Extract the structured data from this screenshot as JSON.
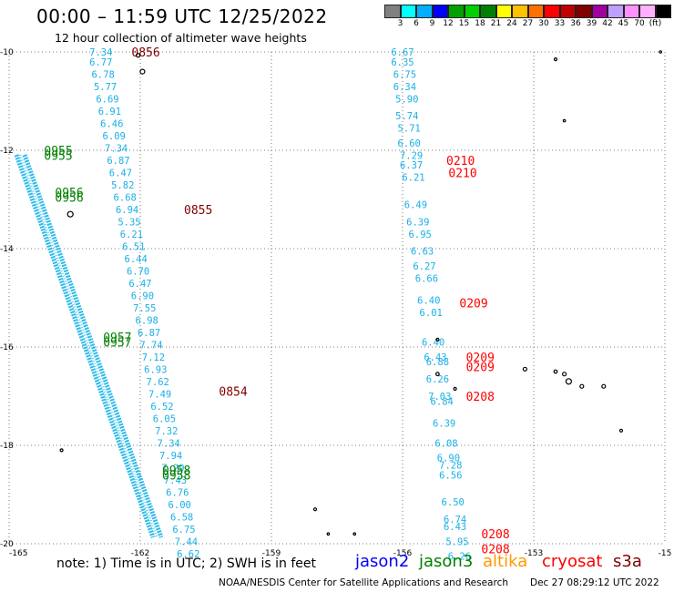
{
  "title": "00:00 – 11:59 UTC 12/25/2022",
  "subtitle": "12 hour collection of altimeter wave heights",
  "color_scale": {
    "unit": "(ft)",
    "colors": [
      "#808080",
      "#00ffff",
      "#00b0ff",
      "#0000ff",
      "#00a000",
      "#00d000",
      "#008000",
      "#ffff00",
      "#ffc000",
      "#ff7000",
      "#ff0000",
      "#c00000",
      "#800000",
      "#a000a0",
      "#c0a0ff",
      "#ff90ff",
      "#ffb0ff",
      "#000000"
    ],
    "labels": [
      "3",
      "6",
      "9",
      "12",
      "15",
      "18",
      "21",
      "24",
      "27",
      "30",
      "33",
      "36",
      "39",
      "42",
      "45",
      "70"
    ]
  },
  "note": "note: 1) Time is in UTC; 2) SWH is in feet",
  "legend": [
    {
      "name": "jason2",
      "color": "#0000ff"
    },
    {
      "name": "jason3",
      "color": "#008000"
    },
    {
      "name": "altika",
      "color": "#ff9900"
    },
    {
      "name": "cryosat",
      "color": "#ff0000"
    },
    {
      "name": "s3a",
      "color": "#800000"
    }
  ],
  "credit": "NOAA/NESDIS Center for Satellite Applications and Research",
  "timestamp": "Dec 27 08:29:12 UTC 2022",
  "chart_data": {
    "type": "scatter",
    "title": "00:00 – 11:59 UTC 12/25/2022",
    "xlim": [
      -165,
      -150
    ],
    "ylim": [
      -20,
      -10
    ],
    "x_ticks": [
      "-165",
      "-162",
      "-159",
      "-156",
      "-153",
      "-15"
    ],
    "y_ticks": [
      "-10",
      "-12",
      "-14",
      "-16",
      "-18",
      "-20"
    ],
    "grid": true,
    "tracks": [
      {
        "name": "s3a",
        "time_color": "#800000",
        "points": [
          {
            "x": -162.9,
            "y": -10.0,
            "v": "7.34"
          },
          {
            "x": -162.9,
            "y": -10.2,
            "v": "6.77"
          },
          {
            "x": -162.85,
            "y": -10.45,
            "v": "6.78"
          },
          {
            "x": -162.8,
            "y": -10.7,
            "v": "5.77"
          },
          {
            "x": -162.75,
            "y": -10.95,
            "v": "6.69"
          },
          {
            "x": -162.7,
            "y": -11.2,
            "v": "6.91"
          },
          {
            "x": -162.65,
            "y": -11.45,
            "v": "6.46"
          },
          {
            "x": -162.6,
            "y": -11.7,
            "v": "6.09"
          },
          {
            "x": -162.55,
            "y": -11.95,
            "v": "7.34"
          },
          {
            "x": -162.5,
            "y": -12.2,
            "v": "6.87"
          },
          {
            "x": -162.45,
            "y": -12.45,
            "v": "6.47"
          },
          {
            "x": -162.4,
            "y": -12.7,
            "v": "5.82"
          },
          {
            "x": -162.35,
            "y": -12.95,
            "v": "6.68"
          },
          {
            "x": -162.3,
            "y": -13.2,
            "v": "6.94"
          },
          {
            "x": -162.25,
            "y": -13.45,
            "v": "5.35"
          },
          {
            "x": -162.2,
            "y": -13.7,
            "v": "6.21"
          },
          {
            "x": -162.15,
            "y": -13.95,
            "v": "6.51"
          },
          {
            "x": -162.1,
            "y": -14.2,
            "v": "6.44"
          },
          {
            "x": -162.05,
            "y": -14.45,
            "v": "6.70"
          },
          {
            "x": -162.0,
            "y": -14.7,
            "v": "6.47"
          },
          {
            "x": -161.95,
            "y": -14.95,
            "v": "6.90"
          },
          {
            "x": -161.9,
            "y": -15.2,
            "v": "7.55"
          },
          {
            "x": -161.85,
            "y": -15.45,
            "v": "6.98"
          },
          {
            "x": -161.8,
            "y": -15.7,
            "v": "6.87"
          },
          {
            "x": -161.75,
            "y": -15.95,
            "v": "7.74"
          },
          {
            "x": -161.7,
            "y": -16.2,
            "v": "7.12"
          },
          {
            "x": -161.65,
            "y": -16.45,
            "v": "6.93"
          },
          {
            "x": -161.6,
            "y": -16.7,
            "v": "7.62"
          },
          {
            "x": -161.55,
            "y": -16.95,
            "v": "7.49"
          },
          {
            "x": -161.5,
            "y": -17.2,
            "v": "6.52"
          },
          {
            "x": -161.45,
            "y": -17.45,
            "v": "6.05"
          },
          {
            "x": -161.4,
            "y": -17.7,
            "v": "7.32"
          },
          {
            "x": -161.35,
            "y": -17.95,
            "v": "7.34"
          },
          {
            "x": -161.3,
            "y": -18.2,
            "v": "7.94"
          },
          {
            "x": -161.25,
            "y": -18.45,
            "v": "7.29"
          },
          {
            "x": -161.2,
            "y": -18.7,
            "v": "7.43"
          },
          {
            "x": -161.15,
            "y": -18.95,
            "v": "6.76"
          },
          {
            "x": -161.1,
            "y": -19.2,
            "v": "6.00"
          },
          {
            "x": -161.05,
            "y": -19.45,
            "v": "6.58"
          },
          {
            "x": -161.0,
            "y": -19.7,
            "v": "6.75"
          },
          {
            "x": -160.95,
            "y": -19.95,
            "v": "7.44"
          },
          {
            "x": -160.9,
            "y": -20.2,
            "v": "6.62"
          }
        ]
      },
      {
        "name": "cryosat",
        "time_color": "#ff0000",
        "points": [
          {
            "x": -156.0,
            "y": -10.0,
            "v": "6.67"
          },
          {
            "x": -156.0,
            "y": -10.2,
            "v": "6.35"
          },
          {
            "x": -155.95,
            "y": -10.45,
            "v": "6.75"
          },
          {
            "x": -155.95,
            "y": -10.7,
            "v": "6.34"
          },
          {
            "x": -155.9,
            "y": -10.95,
            "v": "5.90"
          },
          {
            "x": -155.9,
            "y": -11.3,
            "v": "5.74"
          },
          {
            "x": -155.85,
            "y": -11.55,
            "v": "5.71"
          },
          {
            "x": -155.85,
            "y": -11.85,
            "v": "6.60"
          },
          {
            "x": -155.8,
            "y": -12.1,
            "v": "7.29"
          },
          {
            "x": -155.8,
            "y": -12.3,
            "v": "6.37"
          },
          {
            "x": -155.75,
            "y": -12.55,
            "v": "6.21"
          },
          {
            "x": -155.7,
            "y": -13.1,
            "v": "6.49"
          },
          {
            "x": -155.65,
            "y": -13.45,
            "v": "6.39"
          },
          {
            "x": -155.6,
            "y": -13.7,
            "v": "6.95"
          },
          {
            "x": -155.55,
            "y": -14.05,
            "v": "6.63"
          },
          {
            "x": -155.5,
            "y": -14.35,
            "v": "6.27"
          },
          {
            "x": -155.45,
            "y": -14.6,
            "v": "6.66"
          },
          {
            "x": -155.4,
            "y": -15.05,
            "v": "6.40"
          },
          {
            "x": -155.35,
            "y": -15.3,
            "v": "6.01"
          },
          {
            "x": -155.3,
            "y": -15.9,
            "v": "6.40"
          },
          {
            "x": -155.25,
            "y": -16.2,
            "v": "6.43"
          },
          {
            "x": -155.2,
            "y": -16.3,
            "v": "6.88"
          },
          {
            "x": -155.2,
            "y": -16.65,
            "v": "6.26"
          },
          {
            "x": -155.15,
            "y": -17.0,
            "v": "7.03"
          },
          {
            "x": -155.1,
            "y": -17.1,
            "v": "6.84"
          },
          {
            "x": -155.05,
            "y": -17.55,
            "v": "6.39"
          },
          {
            "x": -155.0,
            "y": -17.95,
            "v": "6.08"
          },
          {
            "x": -154.95,
            "y": -18.25,
            "v": "6.90"
          },
          {
            "x": -154.9,
            "y": -18.4,
            "v": "7.28"
          },
          {
            "x": -154.9,
            "y": -18.6,
            "v": "6.56"
          },
          {
            "x": -154.85,
            "y": -19.15,
            "v": "6.50"
          },
          {
            "x": -154.8,
            "y": -19.5,
            "v": "6.74"
          },
          {
            "x": -154.8,
            "y": -19.65,
            "v": "6.43"
          },
          {
            "x": -154.75,
            "y": -19.95,
            "v": "5.95"
          },
          {
            "x": -154.7,
            "y": -20.25,
            "v": "6.26"
          }
        ]
      }
    ],
    "times": [
      {
        "label": "0856",
        "color": "#800000",
        "x": -162.2,
        "y": -10.0
      },
      {
        "label": "0855",
        "color": "#800000",
        "x": -161.0,
        "y": -13.2
      },
      {
        "label": "0854",
        "color": "#800000",
        "x": -160.2,
        "y": -16.9
      },
      {
        "label": "0955",
        "color": "#008000",
        "x": -164.2,
        "y": -12.0
      },
      {
        "label": "0955",
        "color": "#008000",
        "x": -164.2,
        "y": -12.1
      },
      {
        "label": "0956",
        "color": "#008000",
        "x": -163.95,
        "y": -12.85
      },
      {
        "label": "0956",
        "color": "#008000",
        "x": -163.95,
        "y": -12.95
      },
      {
        "label": "0957",
        "color": "#008000",
        "x": -162.85,
        "y": -15.8
      },
      {
        "label": "0957",
        "color": "#008000",
        "x": -162.85,
        "y": -15.9
      },
      {
        "label": "0958",
        "color": "#008000",
        "x": -161.5,
        "y": -18.5
      },
      {
        "label": "0958",
        "color": "#008000",
        "x": -161.5,
        "y": -18.6
      },
      {
        "label": "0210",
        "color": "#ff0000",
        "x": -155.0,
        "y": -12.2
      },
      {
        "label": "0210",
        "color": "#ff0000",
        "x": -154.95,
        "y": -12.45
      },
      {
        "label": "0209",
        "color": "#ff0000",
        "x": -154.7,
        "y": -15.1
      },
      {
        "label": "0209",
        "color": "#ff0000",
        "x": -154.55,
        "y": -16.2
      },
      {
        "label": "0209",
        "color": "#ff0000",
        "x": -154.55,
        "y": -16.4
      },
      {
        "label": "0208",
        "color": "#ff0000",
        "x": -154.55,
        "y": -17.0
      },
      {
        "label": "0208",
        "color": "#ff0000",
        "x": -154.2,
        "y": -19.8
      },
      {
        "label": "0208",
        "color": "#ff0000",
        "x": -154.2,
        "y": -20.1
      }
    ]
  }
}
